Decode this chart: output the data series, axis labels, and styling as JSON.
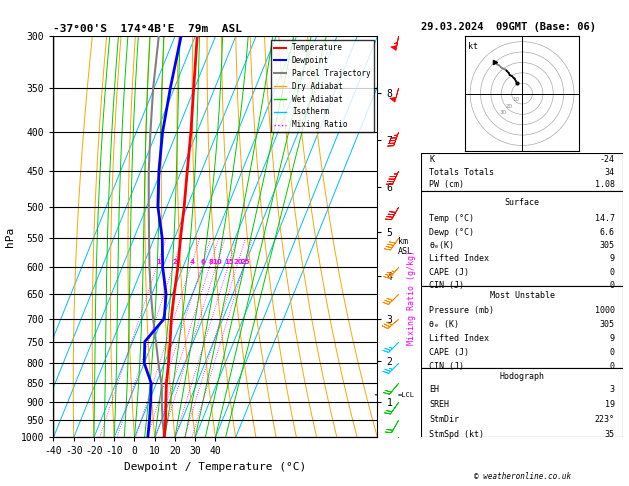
{
  "title_left": "-37°00'S  174°4B'E  79m  ASL",
  "title_right": "29.03.2024  09GMT (Base: 06)",
  "xlabel": "Dewpoint / Temperature (°C)",
  "ylabel_left": "hPa",
  "pressure_ticks": [
    300,
    350,
    400,
    450,
    500,
    550,
    600,
    650,
    700,
    750,
    800,
    850,
    900,
    950,
    1000
  ],
  "temp_range": [
    -40,
    40
  ],
  "isotherm_color": "#00BFFF",
  "dry_adiabat_color": "#FFA500",
  "wet_adiabat_color": "#00CC00",
  "mixing_ratio_color": "#FF00FF",
  "temp_profile_pressure": [
    1000,
    950,
    900,
    850,
    800,
    750,
    700,
    650,
    600,
    550,
    500,
    450,
    400,
    350,
    300
  ],
  "temp_profile_temp": [
    14.7,
    12.0,
    8.5,
    5.0,
    2.0,
    -1.5,
    -5.5,
    -9.0,
    -12.5,
    -17.0,
    -21.5,
    -27.0,
    -33.0,
    -40.5,
    -49.0
  ],
  "dewp_profile_pressure": [
    1000,
    950,
    900,
    850,
    800,
    750,
    700,
    650,
    600,
    550,
    500,
    450,
    400,
    350,
    300
  ],
  "dewp_profile_temp": [
    6.6,
    4.0,
    1.0,
    -2.5,
    -10.0,
    -14.0,
    -9.0,
    -13.0,
    -20.0,
    -26.0,
    -34.5,
    -41.0,
    -47.0,
    -52.0,
    -57.0
  ],
  "parcel_profile_pressure": [
    1000,
    950,
    900,
    860,
    850,
    800,
    750,
    700,
    650,
    600,
    550,
    500,
    450,
    400,
    350,
    300
  ],
  "parcel_profile_temp": [
    14.7,
    10.5,
    6.5,
    3.5,
    2.5,
    -3.0,
    -8.5,
    -14.5,
    -20.5,
    -26.5,
    -32.5,
    -39.0,
    -46.0,
    -53.0,
    -60.5,
    -68.0
  ],
  "lcl_pressure": 880,
  "temp_color": "#FF0000",
  "dewp_color": "#0000FF",
  "parcel_color": "#808080",
  "km_ticks": [
    1,
    2,
    3,
    4,
    5,
    6,
    7,
    8
  ],
  "km_pressures": [
    899,
    795,
    701,
    616,
    540,
    472,
    410,
    356
  ],
  "wb_pressures": [
    1000,
    950,
    900,
    850,
    800,
    750,
    700,
    650,
    600,
    550,
    500,
    450,
    400,
    350,
    300
  ],
  "wb_speeds": [
    15,
    18,
    20,
    22,
    25,
    25,
    30,
    32,
    35,
    38,
    40,
    43,
    47,
    50,
    55
  ],
  "wb_dirs": [
    200,
    210,
    215,
    220,
    225,
    225,
    230,
    225,
    220,
    215,
    210,
    205,
    200,
    195,
    190
  ],
  "hodo_u": [
    -5,
    -6,
    -7,
    -8,
    -10,
    -12,
    -13,
    -15,
    -16,
    -18,
    -20,
    -22,
    -24,
    -26
  ],
  "hodo_v": [
    10,
    12,
    14,
    15,
    17,
    18,
    20,
    22,
    23,
    24,
    25,
    27,
    28,
    30
  ],
  "background_color": "#FFFFFF"
}
